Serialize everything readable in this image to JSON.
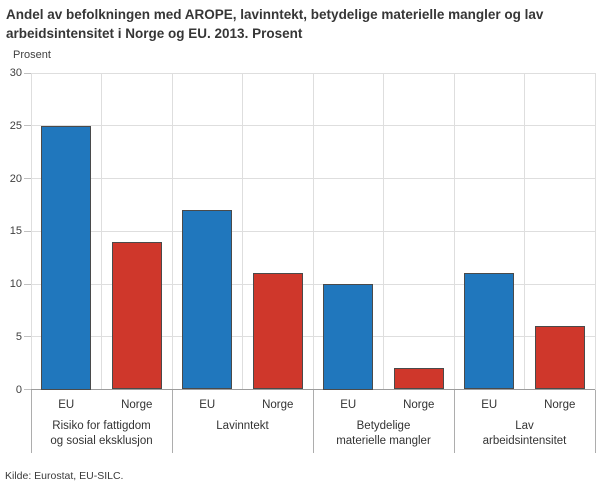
{
  "chart_data": {
    "type": "bar",
    "title": "Andel av befolkningen med AROPE, lavinntekt, betydelige materielle mangler og lav arbeidsintensitet i Norge og EU. 2013. Prosent",
    "ylabel": "Prosent",
    "source": "Kilde: Eurostat, EU-SILC.",
    "categories": [
      {
        "label": "Risiko for fattigdom og sosial eksklusjon",
        "lines": [
          "Risiko for fattigdom",
          "og sosial eksklusjon"
        ]
      },
      {
        "label": "Lavinntekt",
        "lines": [
          "Lavinntekt"
        ]
      },
      {
        "label": "Betydelige materielle mangler",
        "lines": [
          "Betydelige",
          "materielle mangler"
        ]
      },
      {
        "label": "Lav arbeidsintensitet",
        "lines": [
          "Lav",
          "arbeidsintensitet"
        ]
      }
    ],
    "series": [
      {
        "name": "EU",
        "color": "#2077bd",
        "values": [
          25,
          17,
          10,
          11
        ]
      },
      {
        "name": "Norge",
        "color": "#cf372b",
        "values": [
          14,
          11,
          2,
          6
        ]
      }
    ],
    "ylim": [
      0,
      30
    ],
    "yticks": [
      0,
      5,
      10,
      15,
      20,
      25,
      30
    ],
    "grid": true,
    "legend_position": "none",
    "colors": {
      "bar_border": "#4a4a4a",
      "gridline": "#dedede",
      "axis_line": "#9c9c9c",
      "separator": "#adadad",
      "text": "#363636"
    }
  }
}
